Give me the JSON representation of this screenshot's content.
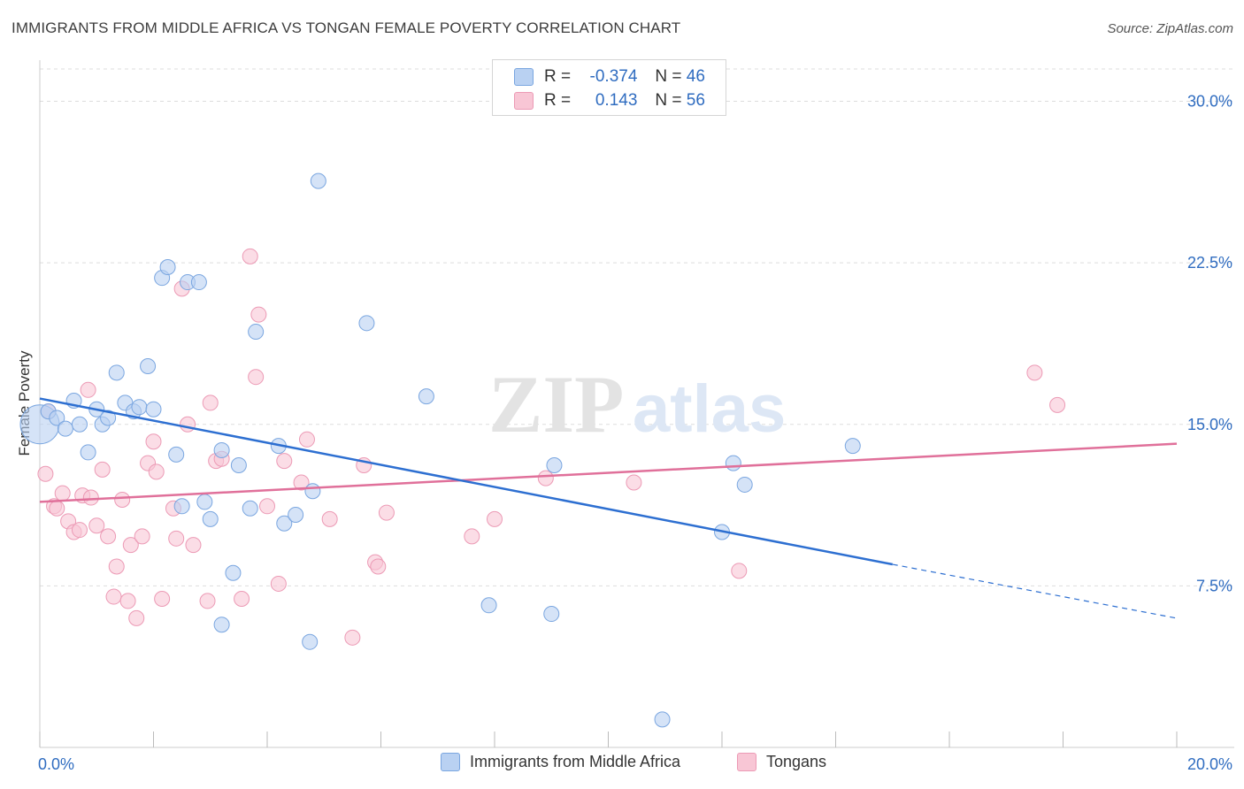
{
  "header": {
    "title": "IMMIGRANTS FROM MIDDLE AFRICA VS TONGAN FEMALE POVERTY CORRELATION CHART",
    "source": "Source: ZipAtlas.com"
  },
  "legend": {
    "series1": {
      "r_label": "R =",
      "r_value": "-0.374",
      "n_label": "N =",
      "n_value": "46"
    },
    "series2": {
      "r_label": "R =",
      "r_value": "0.143",
      "n_label": "N =",
      "n_value": "56"
    }
  },
  "colors": {
    "blue_fill": "#b9d1f2",
    "blue_stroke": "#7aa6e0",
    "blue_line": "#2d6fd1",
    "pink_fill": "#f8c6d5",
    "pink_stroke": "#ec9ab5",
    "pink_line": "#e0709a",
    "axis_text": "#2f6cc0",
    "grid": "#dddddd"
  },
  "chart_data": {
    "type": "scatter",
    "title": "IMMIGRANTS FROM MIDDLE AFRICA VS TONGAN FEMALE POVERTY CORRELATION CHART",
    "xlabel": "",
    "ylabel": "Female Poverty",
    "xlim": [
      0,
      20
    ],
    "ylim": [
      0,
      31.5
    ],
    "x_tick_labels": [
      "0.0%",
      "20.0%"
    ],
    "y_ticks": [
      7.5,
      15.0,
      22.5,
      30.0
    ],
    "y_tick_labels": [
      "7.5%",
      "15.0%",
      "22.5%",
      "30.0%"
    ],
    "grid": "horizontal dashed",
    "legend_position": "top-center",
    "watermark": "ZIPatlas",
    "series": [
      {
        "name": "Immigrants from Middle Africa",
        "color": "#b9d1f2",
        "r": -0.374,
        "n": 46,
        "trend": {
          "x0": 0,
          "y0": 16.2,
          "x1": 15.0,
          "y1": 8.5,
          "dashed_to_x": 20.0,
          "dashed_to_y": 6.0
        },
        "points": [
          [
            0.0,
            15.0
          ],
          [
            0.15,
            15.6
          ],
          [
            0.3,
            15.3
          ],
          [
            0.45,
            14.8
          ],
          [
            0.6,
            16.1
          ],
          [
            0.7,
            15.0
          ],
          [
            0.85,
            13.7
          ],
          [
            1.0,
            15.7
          ],
          [
            1.1,
            15.0
          ],
          [
            1.2,
            15.3
          ],
          [
            1.35,
            17.4
          ],
          [
            1.5,
            16.0
          ],
          [
            1.65,
            15.6
          ],
          [
            1.75,
            15.8
          ],
          [
            1.9,
            17.7
          ],
          [
            2.0,
            15.7
          ],
          [
            2.15,
            21.8
          ],
          [
            2.25,
            22.3
          ],
          [
            2.4,
            13.6
          ],
          [
            2.5,
            11.2
          ],
          [
            2.6,
            21.6
          ],
          [
            2.8,
            21.6
          ],
          [
            2.9,
            11.4
          ],
          [
            3.0,
            10.6
          ],
          [
            3.2,
            13.8
          ],
          [
            3.2,
            5.7
          ],
          [
            3.4,
            8.1
          ],
          [
            3.5,
            13.1
          ],
          [
            3.7,
            11.1
          ],
          [
            3.8,
            19.3
          ],
          [
            4.2,
            14.0
          ],
          [
            4.3,
            10.4
          ],
          [
            4.5,
            10.8
          ],
          [
            4.75,
            4.9
          ],
          [
            4.8,
            11.9
          ],
          [
            4.9,
            26.3
          ],
          [
            5.75,
            19.7
          ],
          [
            6.8,
            16.3
          ],
          [
            7.9,
            6.6
          ],
          [
            9.0,
            6.2
          ],
          [
            9.05,
            13.1
          ],
          [
            10.95,
            1.3
          ],
          [
            12.0,
            10.0
          ],
          [
            12.2,
            13.2
          ],
          [
            12.4,
            12.2
          ],
          [
            14.3,
            14.0
          ]
        ]
      },
      {
        "name": "Tongans",
        "color": "#f8c6d5",
        "r": 0.143,
        "n": 56,
        "trend": {
          "x0": 0,
          "y0": 11.4,
          "x1": 20.0,
          "y1": 14.1
        },
        "points": [
          [
            0.1,
            12.7
          ],
          [
            0.15,
            15.6
          ],
          [
            0.25,
            11.2
          ],
          [
            0.3,
            11.1
          ],
          [
            0.4,
            11.8
          ],
          [
            0.5,
            10.5
          ],
          [
            0.6,
            10.0
          ],
          [
            0.7,
            10.1
          ],
          [
            0.75,
            11.7
          ],
          [
            0.85,
            16.6
          ],
          [
            0.9,
            11.6
          ],
          [
            1.0,
            10.3
          ],
          [
            1.1,
            12.9
          ],
          [
            1.2,
            9.8
          ],
          [
            1.3,
            7.0
          ],
          [
            1.35,
            8.4
          ],
          [
            1.45,
            11.5
          ],
          [
            1.55,
            6.8
          ],
          [
            1.6,
            9.4
          ],
          [
            1.7,
            6.0
          ],
          [
            1.8,
            9.8
          ],
          [
            1.9,
            13.2
          ],
          [
            2.0,
            14.2
          ],
          [
            2.05,
            12.8
          ],
          [
            2.15,
            6.9
          ],
          [
            2.35,
            11.1
          ],
          [
            2.4,
            9.7
          ],
          [
            2.5,
            21.3
          ],
          [
            2.6,
            15.0
          ],
          [
            2.7,
            9.4
          ],
          [
            2.95,
            6.8
          ],
          [
            3.0,
            16.0
          ],
          [
            3.1,
            13.3
          ],
          [
            3.2,
            13.4
          ],
          [
            3.55,
            6.9
          ],
          [
            3.7,
            22.8
          ],
          [
            3.8,
            17.2
          ],
          [
            3.85,
            20.1
          ],
          [
            4.0,
            11.2
          ],
          [
            4.2,
            7.6
          ],
          [
            4.3,
            13.3
          ],
          [
            4.6,
            12.3
          ],
          [
            4.7,
            14.3
          ],
          [
            5.1,
            10.6
          ],
          [
            5.5,
            5.1
          ],
          [
            5.7,
            13.1
          ],
          [
            5.9,
            8.6
          ],
          [
            5.95,
            8.4
          ],
          [
            6.1,
            10.9
          ],
          [
            7.6,
            9.8
          ],
          [
            8.0,
            10.6
          ],
          [
            8.9,
            12.5
          ],
          [
            10.45,
            12.3
          ],
          [
            12.3,
            8.2
          ],
          [
            17.5,
            17.4
          ],
          [
            17.9,
            15.9
          ]
        ]
      }
    ]
  }
}
